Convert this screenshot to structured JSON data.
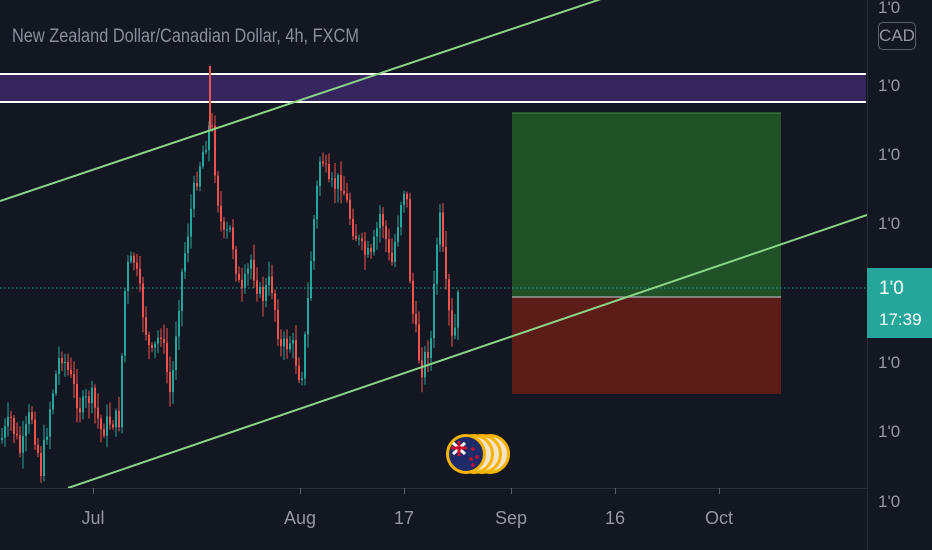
{
  "header": {
    "symbol_title": "New Zealand Dollar/Canadian Dollar, 4h, FXCM",
    "currency_button": "CAD"
  },
  "price_axis": {
    "ticks": [
      "1'0",
      "1'0",
      "1'0",
      "1'0",
      "1'0",
      "1'0",
      "1'0"
    ],
    "current_price": "1'0",
    "countdown": "17:39",
    "accent_color": "#26a69a"
  },
  "time_axis": {
    "labels": [
      "Jul",
      "Aug",
      "17",
      "Sep",
      "16",
      "Oct"
    ]
  },
  "colors": {
    "background": "#131722",
    "up_candle": "#26a69a",
    "down_candle": "#ef5350",
    "channel_line": "#8bd48a",
    "resistance_zone": "#35275e",
    "profit_zone": "#1f5226",
    "loss_zone": "#5c1c18"
  },
  "events": {
    "icon": "nzd-flag-icon",
    "count": 4
  }
}
